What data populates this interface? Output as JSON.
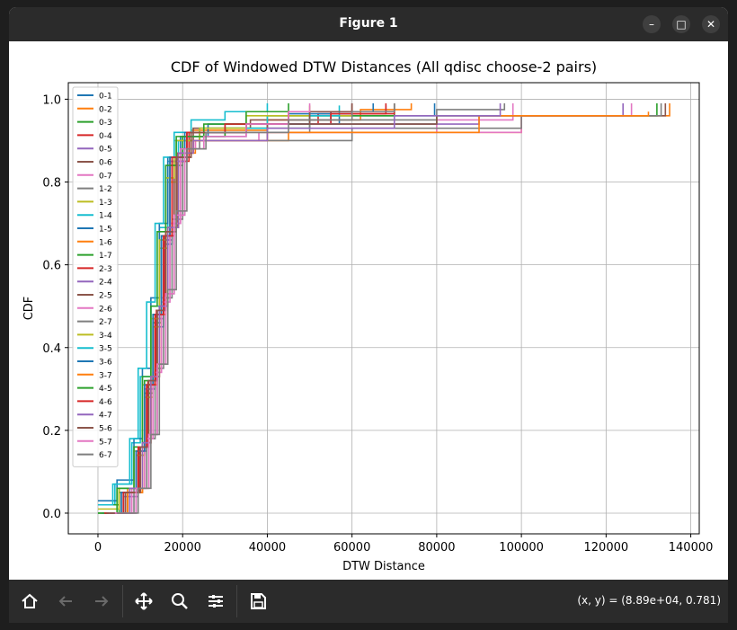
{
  "window": {
    "title": "Figure 1",
    "controls": {
      "minimize": "–",
      "maximize": "□",
      "close": "✕"
    }
  },
  "toolbar": {
    "buttons": [
      {
        "name": "home-button",
        "icon": "home-icon"
      },
      {
        "name": "back-button",
        "icon": "arrow-left-icon"
      },
      {
        "name": "forward-button",
        "icon": "arrow-right-icon"
      },
      {
        "name": "pan-button",
        "icon": "move-icon"
      },
      {
        "name": "zoom-button",
        "icon": "magnifier-icon"
      },
      {
        "name": "configure-subplots-button",
        "icon": "sliders-icon"
      },
      {
        "name": "save-button",
        "icon": "floppy-disk-icon"
      }
    ],
    "coords": "(x, y) = (8.89e+04, 0.781)"
  },
  "chart_data": {
    "type": "line",
    "title": "CDF of Windowed DTW Distances (All qdisc choose-2 pairs)",
    "xlabel": "DTW Distance",
    "ylabel": "CDF",
    "xlim": [
      -7000,
      142000
    ],
    "ylim": [
      -0.05,
      1.04
    ],
    "xticks": [
      0,
      20000,
      40000,
      60000,
      80000,
      100000,
      120000,
      140000
    ],
    "xtick_labels": [
      "0",
      "20000",
      "40000",
      "60000",
      "80000",
      "100000",
      "120000",
      "140000"
    ],
    "yticks": [
      0.0,
      0.2,
      0.4,
      0.6,
      0.8,
      1.0
    ],
    "ytick_labels": [
      "0.0",
      "0.2",
      "0.4",
      "0.6",
      "0.8",
      "1.0"
    ],
    "grid": true,
    "legend_position": "upper-left",
    "series": [
      {
        "name": "0-1",
        "color": "#1f77b4",
        "x": [
          800,
          6000,
          9500,
          11500,
          13500,
          15500,
          17500,
          21000,
          35000,
          57000,
          79500
        ],
        "y": [
          0.0,
          0.05,
          0.15,
          0.3,
          0.45,
          0.65,
          0.85,
          0.92,
          0.94,
          0.96,
          0.99
        ]
      },
      {
        "name": "0-2",
        "color": "#ff7f0e",
        "x": [
          1500,
          7000,
          10000,
          12000,
          14000,
          16000,
          18500,
          22000,
          40000,
          62000,
          74000
        ],
        "y": [
          0.0,
          0.06,
          0.16,
          0.31,
          0.48,
          0.68,
          0.86,
          0.925,
          0.95,
          0.975,
          0.99
        ]
      },
      {
        "name": "0-3",
        "color": "#2ca02c",
        "x": [
          0,
          5000,
          9000,
          11000,
          13000,
          15000,
          17000,
          20000,
          30000,
          50000,
          70000
        ],
        "y": [
          0.0,
          0.05,
          0.14,
          0.29,
          0.46,
          0.66,
          0.84,
          0.91,
          0.93,
          0.96,
          0.99
        ]
      },
      {
        "name": "0-4",
        "color": "#d62728",
        "x": [
          2000,
          6500,
          9800,
          11800,
          13800,
          15800,
          18000,
          21500,
          35000,
          52000,
          70000
        ],
        "y": [
          0.0,
          0.05,
          0.16,
          0.32,
          0.49,
          0.67,
          0.85,
          0.92,
          0.94,
          0.965,
          0.99
        ]
      },
      {
        "name": "0-5",
        "color": "#9467bd",
        "x": [
          1000,
          6000,
          9500,
          11500,
          13500,
          15500,
          17500,
          21000,
          35000,
          55000,
          68000
        ],
        "y": [
          0.0,
          0.04,
          0.15,
          0.3,
          0.47,
          0.66,
          0.86,
          0.92,
          0.94,
          0.97,
          0.985
        ]
      },
      {
        "name": "0-6",
        "color": "#8c564b",
        "x": [
          2500,
          7500,
          10500,
          12500,
          14500,
          16500,
          18800,
          22500,
          36000,
          55000,
          70000
        ],
        "y": [
          0.0,
          0.05,
          0.17,
          0.33,
          0.5,
          0.69,
          0.87,
          0.93,
          0.95,
          0.97,
          0.99
        ]
      },
      {
        "name": "0-7",
        "color": "#e377c2",
        "x": [
          3000,
          8000,
          11000,
          13000,
          15000,
          17000,
          19500,
          23000,
          38000,
          80000,
          98000
        ],
        "y": [
          0.0,
          0.06,
          0.18,
          0.34,
          0.52,
          0.7,
          0.88,
          0.9,
          0.92,
          0.95,
          0.99
        ]
      },
      {
        "name": "1-2",
        "color": "#7f7f7f",
        "x": [
          3500,
          8500,
          11500,
          13500,
          15500,
          17500,
          20000,
          24000,
          50000,
          80000,
          96000
        ],
        "y": [
          0.0,
          0.06,
          0.18,
          0.35,
          0.52,
          0.71,
          0.88,
          0.92,
          0.95,
          0.975,
          0.99
        ]
      },
      {
        "name": "1-3",
        "color": "#bcbd22",
        "x": [
          500,
          5500,
          9000,
          11000,
          13000,
          14500,
          16500,
          18500,
          25000,
          40000,
          60000
        ],
        "y": [
          0.0,
          0.05,
          0.14,
          0.28,
          0.45,
          0.64,
          0.8,
          0.9,
          0.93,
          0.96,
          0.985
        ]
      },
      {
        "name": "1-4",
        "color": "#17becf",
        "x": [
          0,
          4000,
          8000,
          10000,
          12500,
          14500,
          16500,
          19000,
          24000,
          40000,
          57000
        ],
        "y": [
          0.02,
          0.07,
          0.17,
          0.33,
          0.5,
          0.69,
          0.85,
          0.9,
          0.93,
          0.96,
          0.985
        ]
      },
      {
        "name": "1-5",
        "color": "#1f77b4",
        "x": [
          0,
          4500,
          8500,
          10500,
          12500,
          14500,
          16500,
          19500,
          26000,
          45000,
          60000
        ],
        "y": [
          0.03,
          0.08,
          0.18,
          0.35,
          0.52,
          0.7,
          0.86,
          0.91,
          0.94,
          0.965,
          0.99
        ]
      },
      {
        "name": "1-6",
        "color": "#ff7f0e",
        "x": [
          2500,
          7000,
          10500,
          12500,
          14500,
          16500,
          19000,
          23000,
          45000,
          100000,
          135000
        ],
        "y": [
          0.0,
          0.05,
          0.17,
          0.33,
          0.5,
          0.69,
          0.87,
          0.9,
          0.92,
          0.96,
          0.99
        ]
      },
      {
        "name": "1-7",
        "color": "#2ca02c",
        "x": [
          0,
          5000,
          9000,
          11000,
          13000,
          15000,
          17000,
          20000,
          30000,
          80000,
          132000
        ],
        "y": [
          0.02,
          0.06,
          0.15,
          0.32,
          0.48,
          0.67,
          0.86,
          0.91,
          0.94,
          0.96,
          0.99
        ]
      },
      {
        "name": "2-3",
        "color": "#d62728",
        "x": [
          1500,
          6000,
          9500,
          11500,
          13500,
          15500,
          17500,
          21000,
          35000,
          55000,
          68000
        ],
        "y": [
          0.0,
          0.05,
          0.16,
          0.31,
          0.48,
          0.67,
          0.85,
          0.92,
          0.94,
          0.965,
          0.99
        ]
      },
      {
        "name": "2-4",
        "color": "#9467bd",
        "x": [
          500,
          5500,
          9000,
          11000,
          13000,
          15000,
          17000,
          20500,
          35000,
          90000,
          124000
        ],
        "y": [
          0.0,
          0.05,
          0.15,
          0.3,
          0.47,
          0.66,
          0.85,
          0.91,
          0.94,
          0.96,
          0.99
        ]
      },
      {
        "name": "2-5",
        "color": "#8c564b",
        "x": [
          2000,
          6500,
          10000,
          12000,
          14000,
          16000,
          18000,
          22000,
          40000,
          80000,
          134000
        ],
        "y": [
          0.0,
          0.05,
          0.16,
          0.32,
          0.49,
          0.68,
          0.86,
          0.92,
          0.94,
          0.96,
          0.99
        ]
      },
      {
        "name": "2-6",
        "color": "#e377c2",
        "x": [
          3000,
          8000,
          11000,
          13000,
          15000,
          17000,
          19500,
          23000,
          40000,
          100000,
          126000
        ],
        "y": [
          0.0,
          0.06,
          0.18,
          0.34,
          0.51,
          0.7,
          0.88,
          0.9,
          0.92,
          0.96,
          0.99
        ]
      },
      {
        "name": "2-7",
        "color": "#7f7f7f",
        "x": [
          4000,
          9000,
          12000,
          14000,
          16000,
          18000,
          20500,
          25000,
          60000,
          100000,
          133000
        ],
        "y": [
          0.0,
          0.06,
          0.19,
          0.36,
          0.53,
          0.72,
          0.88,
          0.9,
          0.93,
          0.96,
          0.99
        ]
      },
      {
        "name": "3-4",
        "color": "#bcbd22",
        "x": [
          0,
          5000,
          8500,
          10500,
          12500,
          14500,
          16000,
          18000,
          24000,
          35000,
          50000
        ],
        "y": [
          0.01,
          0.06,
          0.15,
          0.31,
          0.47,
          0.66,
          0.81,
          0.9,
          0.93,
          0.96,
          0.985
        ]
      },
      {
        "name": "3-5",
        "color": "#17becf",
        "x": [
          0,
          3500,
          7500,
          9500,
          11500,
          13500,
          15500,
          18000,
          22000,
          30000,
          40000
        ],
        "y": [
          0.02,
          0.07,
          0.18,
          0.35,
          0.51,
          0.7,
          0.86,
          0.92,
          0.95,
          0.97,
          0.99
        ]
      },
      {
        "name": "3-6",
        "color": "#1f77b4",
        "x": [
          1000,
          5500,
          9000,
          11000,
          13000,
          15000,
          17000,
          20500,
          30000,
          50000,
          65000
        ],
        "y": [
          0.0,
          0.05,
          0.15,
          0.31,
          0.48,
          0.67,
          0.86,
          0.92,
          0.94,
          0.97,
          0.99
        ]
      },
      {
        "name": "3-7",
        "color": "#ff7f0e",
        "x": [
          2500,
          7000,
          10500,
          12500,
          14500,
          16500,
          19000,
          22500,
          40000,
          90000,
          130000
        ],
        "y": [
          0.0,
          0.05,
          0.17,
          0.33,
          0.5,
          0.69,
          0.87,
          0.9,
          0.92,
          0.96,
          0.97
        ]
      },
      {
        "name": "4-5",
        "color": "#2ca02c",
        "x": [
          0,
          4500,
          8500,
          10500,
          12500,
          14000,
          16000,
          18500,
          25000,
          35000,
          45000
        ],
        "y": [
          0.0,
          0.06,
          0.16,
          0.33,
          0.5,
          0.68,
          0.84,
          0.91,
          0.94,
          0.97,
          0.99
        ]
      },
      {
        "name": "4-6",
        "color": "#d62728",
        "x": [
          1500,
          6000,
          9500,
          11500,
          13500,
          15500,
          17500,
          21000,
          30000,
          45000,
          60000
        ],
        "y": [
          0.0,
          0.05,
          0.16,
          0.31,
          0.48,
          0.67,
          0.86,
          0.92,
          0.94,
          0.97,
          0.99
        ]
      },
      {
        "name": "4-7",
        "color": "#9467bd",
        "x": [
          2500,
          7500,
          10500,
          12500,
          14500,
          16500,
          19000,
          22500,
          40000,
          70000,
          95000
        ],
        "y": [
          0.0,
          0.06,
          0.17,
          0.33,
          0.5,
          0.69,
          0.87,
          0.9,
          0.93,
          0.96,
          0.99
        ]
      },
      {
        "name": "5-6",
        "color": "#8c564b",
        "x": [
          2000,
          6500,
          10000,
          12000,
          14000,
          16000,
          18500,
          22000,
          35000,
          50000,
          60000
        ],
        "y": [
          0.0,
          0.05,
          0.16,
          0.32,
          0.49,
          0.68,
          0.86,
          0.92,
          0.94,
          0.97,
          0.99
        ]
      },
      {
        "name": "5-7",
        "color": "#e377c2",
        "x": [
          4000,
          9000,
          12000,
          14000,
          16000,
          18000,
          20500,
          25000,
          35000,
          45000,
          50000
        ],
        "y": [
          0.0,
          0.06,
          0.19,
          0.36,
          0.53,
          0.72,
          0.88,
          0.91,
          0.94,
          0.97,
          0.99
        ]
      },
      {
        "name": "6-7",
        "color": "#7f7f7f",
        "x": [
          4500,
          9500,
          12500,
          14500,
          16500,
          18500,
          21000,
          25500,
          45000,
          60000,
          70000
        ],
        "y": [
          0.0,
          0.06,
          0.19,
          0.36,
          0.54,
          0.73,
          0.88,
          0.92,
          0.95,
          0.97,
          0.99
        ]
      }
    ]
  }
}
